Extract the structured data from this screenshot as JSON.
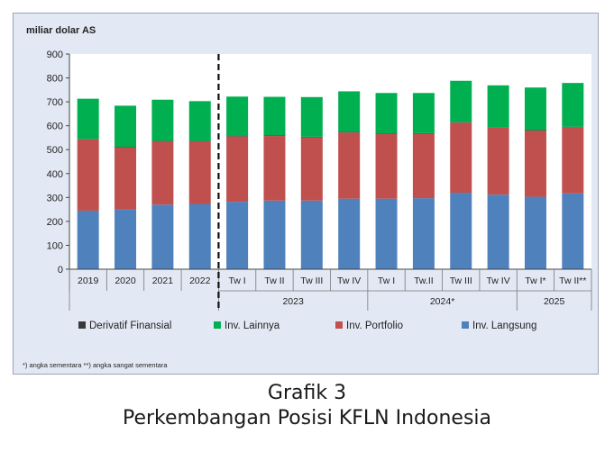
{
  "figure": {
    "number_label": "Grafik 3",
    "title": "Perkembangan Posisi KFLN Indonesia"
  },
  "chart_data": {
    "type": "bar",
    "stacked": true,
    "unit_label": "miliar dolar AS",
    "ylim": [
      0,
      900
    ],
    "yticks": [
      0,
      100,
      200,
      300,
      400,
      500,
      600,
      700,
      800,
      900
    ],
    "grid": false,
    "legend_position": "bottom",
    "categories": [
      "2019",
      "2020",
      "2021",
      "2022",
      "Tw I",
      "Tw II",
      "Tw III",
      "Tw IV",
      "Tw I",
      "Tw.II",
      "Tw III",
      "Tw IV",
      "Tw I*",
      "Tw II**"
    ],
    "groups": [
      {
        "label": "2023",
        "start": 4,
        "end": 7
      },
      {
        "label": "2024*",
        "start": 8,
        "end": 11
      },
      {
        "label": "2025",
        "start": 12,
        "end": 13
      }
    ],
    "divider_after_index": 3,
    "series": [
      {
        "name": "Inv. Langsung",
        "color": "#4f81bd",
        "values": [
          245,
          250,
          270,
          273,
          282,
          287,
          287,
          295,
          295,
          297,
          320,
          312,
          303,
          317
        ]
      },
      {
        "name": "Inv. Portfolio",
        "color": "#c0504d",
        "values": [
          298,
          260,
          265,
          262,
          273,
          270,
          265,
          277,
          270,
          270,
          293,
          280,
          277,
          277
        ]
      },
      {
        "name": "Derivatif Finansial",
        "color": "#3a3a3a",
        "values": [
          2,
          2,
          2,
          2,
          2,
          2,
          2,
          2,
          2,
          2,
          2,
          2,
          2,
          2
        ]
      },
      {
        "name": "Inv. Lainnya",
        "color": "#00b050",
        "values": [
          168,
          172,
          172,
          166,
          165,
          162,
          166,
          170,
          170,
          168,
          173,
          175,
          178,
          183
        ]
      }
    ],
    "legend_order": [
      "Derivatif Finansial",
      "Inv. Lainnya",
      "Inv. Portfolio",
      "Inv. Langsung"
    ],
    "footnote": "*) angka sementara **) angka sangat sementara"
  }
}
